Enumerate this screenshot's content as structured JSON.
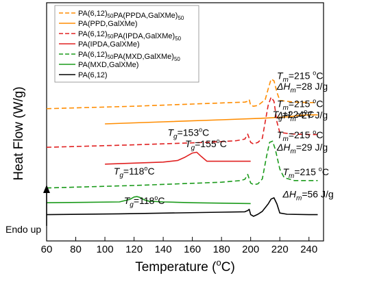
{
  "chart_data": {
    "type": "line",
    "title": "",
    "xlabel": "Temperature (°C)",
    "ylabel": "Heat Flow (W/g)",
    "xlim": [
      60,
      250
    ],
    "xticks": [
      60,
      80,
      100,
      120,
      140,
      160,
      180,
      200,
      220,
      240
    ],
    "endo_label": "Endo up",
    "legend_position": "top-left",
    "series": [
      {
        "name": "PA(6,12)50PA(PPDA,GalXMe)50",
        "color": "#ff8c00",
        "dash": true,
        "x": [
          60,
          120,
          180,
          196,
          198,
          199,
          200,
          202,
          205,
          210,
          212,
          214,
          216,
          218,
          220,
          230,
          240,
          246
        ],
        "y": [
          258,
          252,
          244,
          242,
          240,
          236,
          250,
          252,
          250,
          236,
          210,
          186,
          190,
          218,
          238,
          242,
          243,
          243
        ]
      },
      {
        "name": "PA(PPD,GalXMe)",
        "color": "#ff8c00",
        "dash": false,
        "x": [
          100,
          140,
          180,
          210,
          225,
          230,
          234,
          240,
          246
        ],
        "y": [
          295,
          290,
          285,
          281,
          278,
          276,
          274,
          273,
          273
        ]
      },
      {
        "name": "PA(6,12)50PA(IPDA,GalXMe)50",
        "color": "#e02020",
        "dash": true,
        "x": [
          60,
          120,
          170,
          190,
          196,
          198,
          200,
          202,
          205,
          208,
          210,
          212,
          214,
          216,
          218,
          220,
          230,
          240,
          246
        ],
        "y": [
          352,
          346,
          340,
          336,
          332,
          320,
          340,
          344,
          340,
          330,
          290,
          250,
          230,
          240,
          290,
          316,
          320,
          321,
          321
        ]
      },
      {
        "name": "PA(IPDA,GalXMe)",
        "color": "#e02020",
        "dash": false,
        "x": [
          100,
          140,
          150,
          155,
          160,
          163,
          166,
          170,
          180,
          200
        ],
        "y": [
          393,
          388,
          384,
          376,
          366,
          364,
          374,
          386,
          386,
          386
        ]
      },
      {
        "name": "PA(6,12)50PA(MXD,GalXMe)50",
        "color": "#1a9a1a",
        "dash": true,
        "x": [
          60,
          120,
          180,
          193,
          196,
          198,
          200,
          202,
          205,
          208,
          211,
          213,
          215,
          217,
          220,
          223,
          230,
          240,
          246
        ],
        "y": [
          451,
          445,
          437,
          433,
          430,
          418,
          439,
          443,
          441,
          429,
          372,
          340,
          337,
          358,
          405,
          426,
          433,
          433,
          433
        ]
      },
      {
        "name": "PA(MXD,GalXMe)",
        "color": "#1a9a1a",
        "dash": false,
        "x": [
          60,
          110,
          117,
          120,
          122,
          124,
          127,
          130,
          140,
          160,
          180,
          200
        ],
        "y": [
          487,
          485,
          479,
          473,
          472,
          474,
          480,
          483,
          485,
          487,
          488,
          489
        ]
      },
      {
        "name": "PA(6,12)",
        "color": "#000000",
        "dash": false,
        "x": [
          60,
          110,
          180,
          196,
          198,
          199,
          200,
          202,
          205,
          208,
          212,
          214,
          216,
          218,
          220,
          225,
          240,
          246
        ],
        "y": [
          516,
          514,
          510,
          509,
          506,
          503,
          516,
          520,
          515,
          508,
          490,
          478,
          475,
          490,
          512,
          515,
          516,
          516
        ]
      }
    ],
    "annotations": [
      {
        "label": "Tm=215 oC",
        "x": 218,
        "y": 186
      },
      {
        "label": "ΔHm=28 J/g",
        "x": 218,
        "y": 212
      },
      {
        "label": "Tg=224oC",
        "x": 215,
        "y": 280
      },
      {
        "label": "Tm=215 oC",
        "x": 218,
        "y": 254
      },
      {
        "label": "ΔHm=27 J/g",
        "x": 218,
        "y": 282
      },
      {
        "label": "Tg=153oC",
        "x": 143,
        "y": 324
      },
      {
        "label": "Tg=155oC",
        "x": 155,
        "y": 352
      },
      {
        "label": "Tm=215 oC",
        "x": 218,
        "y": 330
      },
      {
        "label": "ΔHm=29 J/g",
        "x": 218,
        "y": 360
      },
      {
        "label": "Tg=118oC",
        "x": 106,
        "y": 418
      },
      {
        "label": "Tg=118oC",
        "x": 113,
        "y": 490
      },
      {
        "label": "Tm=215 oC",
        "x": 222,
        "y": 420
      },
      {
        "label": "ΔHm=56 J/g",
        "x": 222,
        "y": 474
      }
    ]
  }
}
